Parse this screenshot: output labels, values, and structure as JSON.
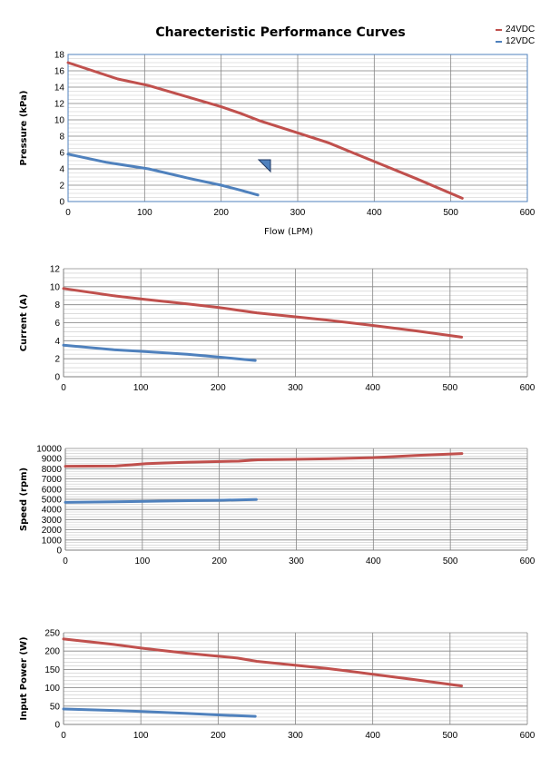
{
  "title": "Charecteristic Performance Curves",
  "legend": [
    {
      "name": "24VDC",
      "color": "#c0504d"
    },
    {
      "name": "12VDC",
      "color": "#4f81bd"
    }
  ],
  "marker_icon": "blue-triangle-marker-icon",
  "chart_data": [
    {
      "type": "line",
      "title": "Charecteristic Performance Curves",
      "xlabel": "Flow (LPM)",
      "ylabel": "Pressure (kPa)",
      "xlim": [
        0,
        600
      ],
      "ylim": [
        0,
        18
      ],
      "xticks": [
        "0",
        "100",
        "200",
        "300",
        "400",
        "500",
        "600"
      ],
      "yticks": [
        "0",
        "2",
        "4",
        "6",
        "8",
        "10",
        "12",
        "14",
        "16",
        "18"
      ],
      "grid": true,
      "legend_position": "top-right",
      "series": [
        {
          "name": "24VDC",
          "color": "#c0504d",
          "x": [
            0,
            65,
            105,
            160,
            200,
            225,
            250,
            290,
            340,
            400,
            455,
            515
          ],
          "y": [
            17.0,
            15.0,
            14.2,
            12.7,
            11.6,
            10.8,
            9.9,
            8.7,
            7.2,
            4.9,
            2.8,
            0.4
          ]
        },
        {
          "name": "12VDC",
          "color": "#4f81bd",
          "x": [
            0,
            50,
            105,
            160,
            200,
            225,
            248
          ],
          "y": [
            5.8,
            4.8,
            4.0,
            2.8,
            2.0,
            1.4,
            0.8
          ]
        }
      ]
    },
    {
      "type": "line",
      "xlabel": "",
      "ylabel": "Current (A)",
      "xlim": [
        0,
        600
      ],
      "ylim": [
        0,
        12
      ],
      "xticks": [
        "0",
        "100",
        "200",
        "300",
        "400",
        "500",
        "600"
      ],
      "yticks": [
        "0",
        "2",
        "4",
        "6",
        "8",
        "10",
        "12"
      ],
      "grid": true,
      "series": [
        {
          "name": "24VDC",
          "color": "#c0504d",
          "x": [
            0,
            65,
            105,
            160,
            200,
            225,
            250,
            340,
            400,
            455,
            515
          ],
          "y": [
            9.8,
            9.0,
            8.6,
            8.1,
            7.7,
            7.4,
            7.1,
            6.3,
            5.7,
            5.1,
            4.4
          ]
        },
        {
          "name": "12VDC",
          "color": "#4f81bd",
          "x": [
            0,
            65,
            105,
            160,
            200,
            225,
            248
          ],
          "y": [
            3.5,
            3.0,
            2.8,
            2.5,
            2.2,
            2.0,
            1.8
          ]
        }
      ]
    },
    {
      "type": "line",
      "xlabel": "",
      "ylabel": "Speed (rpm)",
      "xlim": [
        0,
        600
      ],
      "ylim": [
        0,
        10000
      ],
      "xticks": [
        "0",
        "100",
        "200",
        "300",
        "400",
        "500",
        "600"
      ],
      "yticks": [
        "0",
        "1000",
        "2000",
        "3000",
        "4000",
        "5000",
        "6000",
        "7000",
        "8000",
        "9000",
        "10000"
      ],
      "grid": true,
      "series": [
        {
          "name": "24VDC",
          "color": "#c0504d",
          "x": [
            0,
            65,
            105,
            160,
            225,
            250,
            340,
            400,
            455,
            515
          ],
          "y": [
            8250,
            8270,
            8500,
            8650,
            8750,
            8880,
            8980,
            9100,
            9300,
            9500
          ]
        },
        {
          "name": "12VDC",
          "color": "#4f81bd",
          "x": [
            0,
            65,
            105,
            160,
            200,
            248
          ],
          "y": [
            4700,
            4750,
            4800,
            4870,
            4900,
            4980
          ]
        }
      ]
    },
    {
      "type": "line",
      "xlabel": "",
      "ylabel": "Input  Power (W)",
      "xlim": [
        0,
        600
      ],
      "ylim": [
        0,
        250
      ],
      "xticks": [
        "0",
        "100",
        "200",
        "300",
        "400",
        "500",
        "600"
      ],
      "yticks": [
        "0",
        "50",
        "100",
        "150",
        "200",
        "250"
      ],
      "grid": true,
      "series": [
        {
          "name": "24VDC",
          "color": "#c0504d",
          "x": [
            0,
            65,
            105,
            160,
            225,
            250,
            340,
            400,
            455,
            515
          ],
          "y": [
            233,
            218,
            207,
            194,
            181,
            172,
            153,
            137,
            122,
            105
          ]
        },
        {
          "name": "12VDC",
          "color": "#4f81bd",
          "x": [
            0,
            65,
            105,
            160,
            200,
            248
          ],
          "y": [
            42,
            38,
            35,
            30,
            26,
            22
          ]
        }
      ]
    }
  ]
}
